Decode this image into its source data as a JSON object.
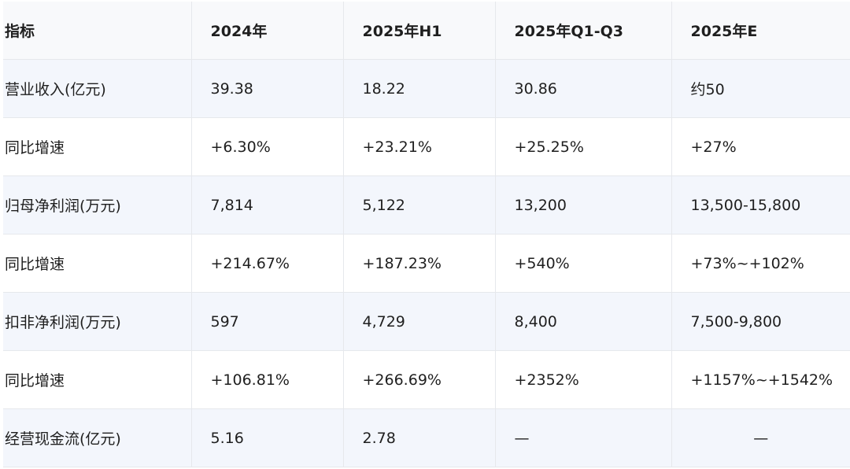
{
  "table": {
    "headers": [
      "指标",
      "2024年",
      "2025年H1",
      "2025年Q1-Q3",
      "2025年E"
    ],
    "rows": [
      [
        "营业收入(亿元)",
        "39.38",
        "18.22",
        "30.86",
        "约50"
      ],
      [
        "同比增速",
        "+6.30%",
        "+23.21%",
        "+25.25%",
        "+27%"
      ],
      [
        "归母净利润(万元)",
        "7,814",
        "5,122",
        "13,200",
        "13,500-15,800"
      ],
      [
        "同比增速",
        "+214.67%",
        "+187.23%",
        "+540%",
        "+73%~+102%"
      ],
      [
        "扣非净利润(万元)",
        "597",
        "4,729",
        "8,400",
        "7,500-9,800"
      ],
      [
        "同比增速",
        "+106.81%",
        "+266.69%",
        "+2352%",
        "+1157%~+1542%"
      ],
      [
        "经营现金流(亿元)",
        "5.16",
        "2.78",
        "—",
        "—"
      ]
    ]
  }
}
